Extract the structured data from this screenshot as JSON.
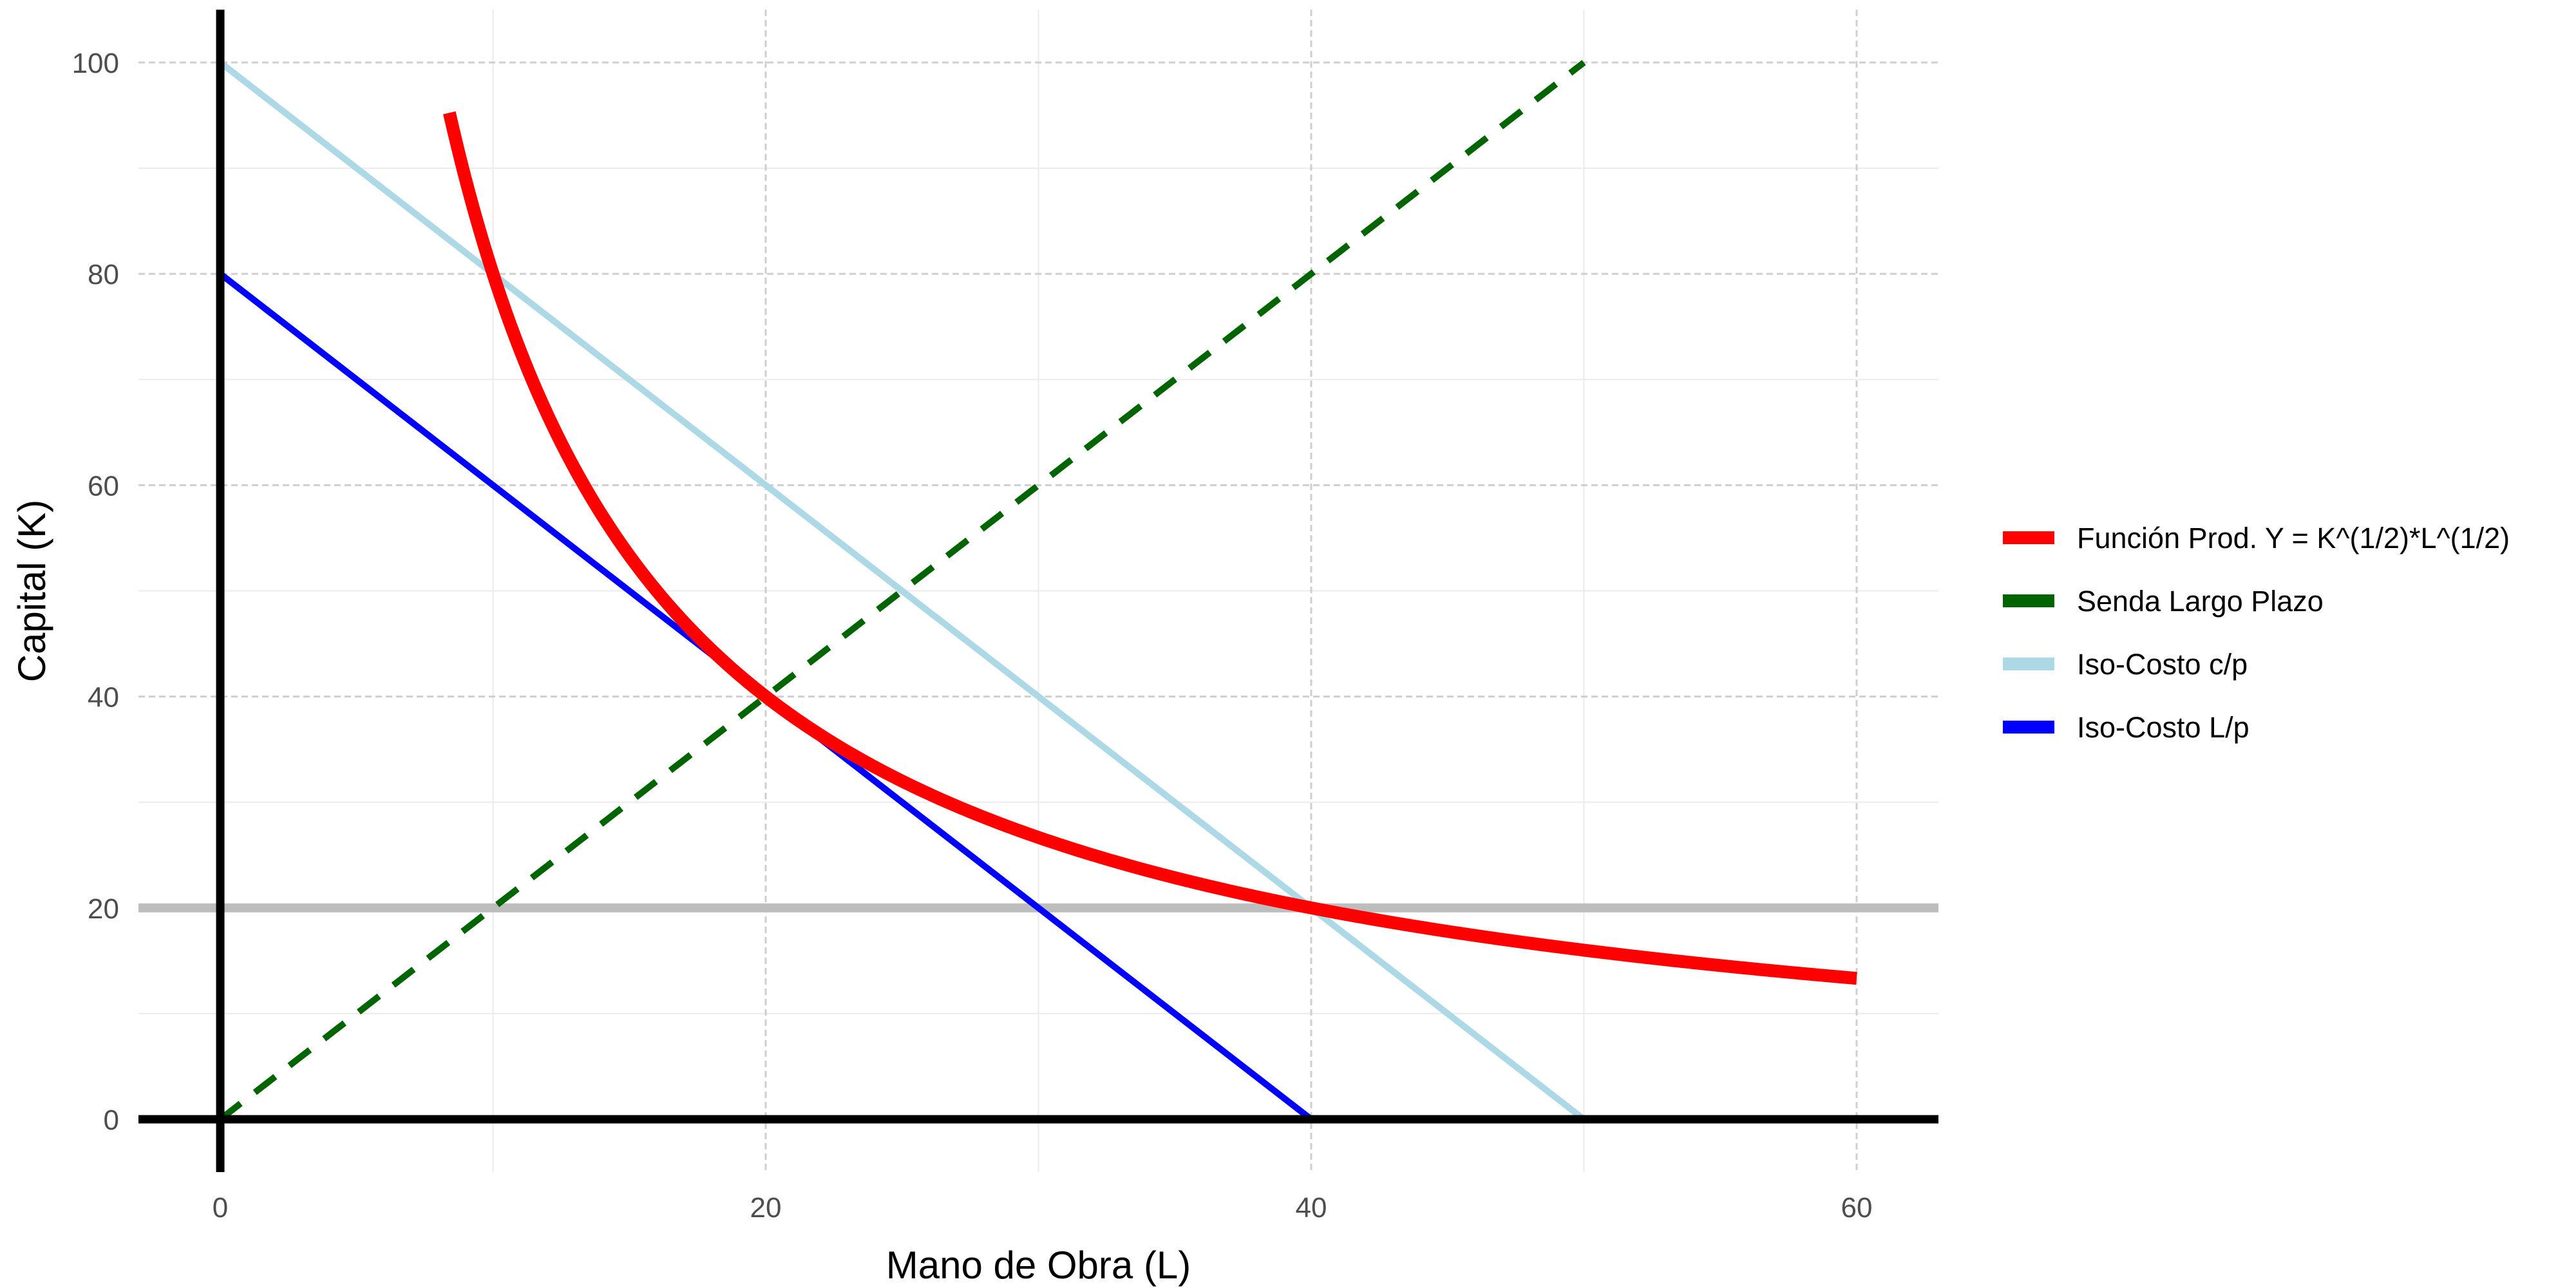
{
  "chart_data": {
    "type": "line",
    "xlabel": "Mano de Obra (L)",
    "ylabel": "Capital (K)",
    "xlim": [
      -3,
      63
    ],
    "ylim": [
      -5,
      105
    ],
    "x_ticks": [
      0,
      20,
      40,
      60
    ],
    "y_ticks": [
      0,
      20,
      40,
      60,
      80,
      100
    ],
    "grid": true,
    "legend_position": "right",
    "reference_lines": {
      "x_axis_at_y": 0,
      "y_axis_at_x": 0,
      "horizontal_gray_at_y": 20
    },
    "series": [
      {
        "name": "Función Prod. Y = K^(1/2)*L^(1/2)",
        "color": "#ff0000",
        "style": "solid",
        "function": "K = 800 / L",
        "x_range": [
          8.4,
          60
        ]
      },
      {
        "name": "Senda Largo Plazo",
        "color": "#006400",
        "style": "dashed",
        "function": "K = 2 * L",
        "x_range": [
          0,
          50
        ]
      },
      {
        "name": "Iso-Costo c/p",
        "color": "#add8e6",
        "style": "solid",
        "function": "K = 100 - 2 * L",
        "x_range": [
          0,
          50
        ]
      },
      {
        "name": "Iso-Costo L/p",
        "color": "#0000ff",
        "style": "solid",
        "function": "K = 80 - 2 * L",
        "x_range": [
          0,
          40
        ]
      }
    ]
  }
}
